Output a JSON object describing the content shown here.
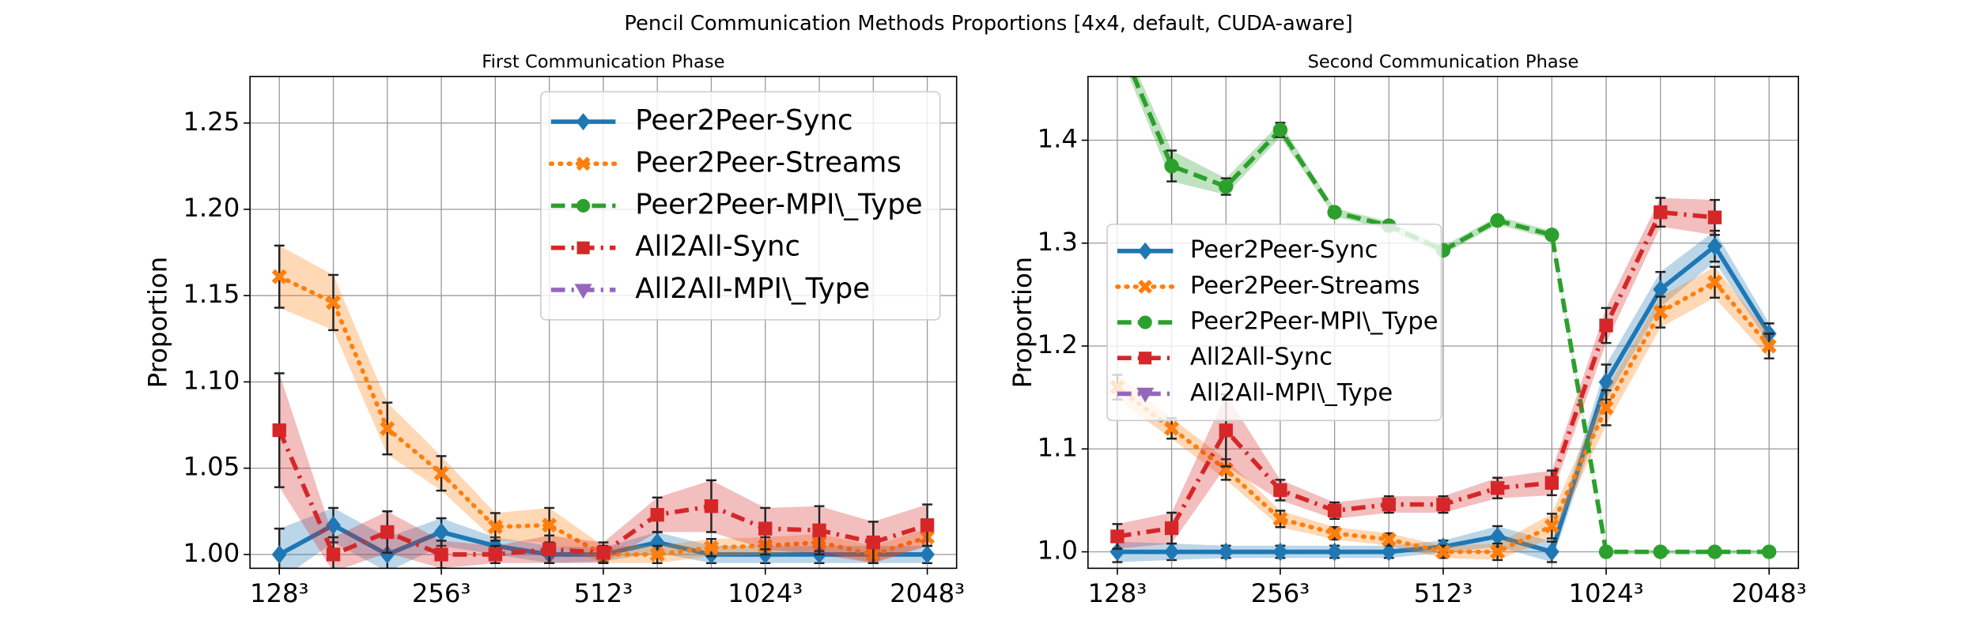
{
  "title": "Pencil Communication Methods Proportions [4x4, default, CUDA-aware]",
  "chart_data": [
    {
      "type": "line",
      "title": "First Communication Phase",
      "ylabel": "Proportion",
      "categories": [
        "128³",
        null,
        null,
        "256³",
        null,
        null,
        "512³",
        null,
        null,
        "1024³",
        null,
        null,
        "2048³"
      ],
      "ylim": [
        0.992,
        1.277
      ],
      "yticks": [
        {
          "value": 1.0,
          "label": "1.00"
        },
        {
          "value": 1.05,
          "label": "1.05"
        },
        {
          "value": 1.1,
          "label": "1.10"
        },
        {
          "value": 1.15,
          "label": "1.15"
        },
        {
          "value": 1.2,
          "label": "1.20"
        },
        {
          "value": 1.25,
          "label": "1.25"
        }
      ],
      "grid": true,
      "legend": "upper right",
      "series": [
        {
          "name": "Peer2Peer-Sync",
          "color": "#1f77b4",
          "linestyle": "solid",
          "marker": "diamond",
          "values": [
            1.0,
            1.017,
            1.0,
            1.013,
            1.005,
            1.0,
            1.0,
            1.007,
            1.0,
            1.0,
            1.0,
            1.0,
            1.0
          ],
          "errors": [
            0.015,
            0.01,
            0.01,
            0.008,
            0.005,
            0.005,
            0.004,
            0.006,
            0.005,
            0.005,
            0.005,
            0.005,
            0.005
          ]
        },
        {
          "name": "Peer2Peer-Streams",
          "color": "#ff7f0e",
          "linestyle": "dotted",
          "marker": "x",
          "values": [
            1.161,
            1.146,
            1.073,
            1.047,
            1.016,
            1.017,
            1.0,
            1.0,
            1.004,
            1.005,
            1.007,
            1.0,
            1.01
          ],
          "errors": [
            0.018,
            0.016,
            0.015,
            0.01,
            0.008,
            0.01,
            0.005,
            0.005,
            0.005,
            0.005,
            0.005,
            0.005,
            0.005
          ]
        },
        {
          "name": "Peer2Peer-MPI\\_Type",
          "color": "#2ca02c",
          "linestyle": "dashed",
          "marker": "circle",
          "values": [
            null,
            null,
            null,
            null,
            null,
            null,
            null,
            null,
            null,
            null,
            null,
            null,
            null
          ]
        },
        {
          "name": "All2All-Sync",
          "color": "#d62728",
          "linestyle": "dashdot",
          "marker": "square",
          "values": [
            1.072,
            1.0,
            1.013,
            1.0,
            1.0,
            1.003,
            1.001,
            1.023,
            1.028,
            1.015,
            1.014,
            1.007,
            1.017
          ],
          "errors": [
            0.033,
            0.01,
            0.012,
            0.008,
            0.005,
            0.008,
            0.006,
            0.01,
            0.015,
            0.012,
            0.014,
            0.012,
            0.012
          ]
        },
        {
          "name": "All2All-MPI\\_Type",
          "color": "#9467bd",
          "linestyle": "dashdot",
          "marker": "triangle",
          "values": [
            null,
            null,
            null,
            null,
            null,
            null,
            null,
            null,
            null,
            null,
            null,
            null,
            null
          ]
        }
      ]
    },
    {
      "type": "line",
      "title": "Second Communication Phase",
      "ylabel": "Proportion",
      "categories": [
        "128³",
        null,
        null,
        "256³",
        null,
        null,
        "512³",
        null,
        null,
        "1024³",
        null,
        null,
        "2048³"
      ],
      "ylim": [
        0.984,
        1.462
      ],
      "yticks": [
        {
          "value": 1.0,
          "label": "1.0"
        },
        1.1,
        1.2,
        1.3,
        1.4
      ],
      "grid": true,
      "legend": "center left",
      "series": [
        {
          "name": "Peer2Peer-Sync",
          "color": "#1f77b4",
          "linestyle": "solid",
          "marker": "diamond",
          "values": [
            1.0,
            1.0,
            1.0,
            1.0,
            1.0,
            1.0,
            1.005,
            1.015,
            1.0,
            1.165,
            1.255,
            1.297,
            1.212
          ],
          "errors": [
            0.01,
            0.008,
            0.006,
            0.006,
            0.006,
            0.006,
            0.006,
            0.01,
            0.01,
            0.017,
            0.017,
            0.015,
            0.01
          ]
        },
        {
          "name": "Peer2Peer-Streams",
          "color": "#ff7f0e",
          "linestyle": "dotted",
          "marker": "x",
          "values": [
            1.16,
            1.12,
            1.08,
            1.032,
            1.018,
            1.012,
            1.0,
            1.0,
            1.025,
            1.14,
            1.233,
            1.262,
            1.2
          ],
          "errors": [
            0.012,
            0.01,
            0.01,
            0.008,
            0.006,
            0.006,
            0.006,
            0.008,
            0.012,
            0.017,
            0.015,
            0.015,
            0.012
          ]
        },
        {
          "name": "Peer2Peer-MPI\\_Type",
          "color": "#2ca02c",
          "linestyle": "dashed",
          "marker": "circle",
          "values": [
            1.5,
            1.375,
            1.355,
            1.41,
            1.33,
            1.317,
            1.293,
            1.322,
            1.308,
            1.0,
            1.0,
            1.0,
            1.0
          ],
          "errors": [
            0.01,
            0.015,
            0.008,
            0.007,
            0.004,
            0.004,
            0.004,
            0.004,
            0.004,
            0.002,
            0.002,
            0.002,
            0.002
          ]
        },
        {
          "name": "All2All-Sync",
          "color": "#d62728",
          "linestyle": "dashdot",
          "marker": "square",
          "values": [
            1.015,
            1.023,
            1.118,
            1.06,
            1.04,
            1.046,
            1.046,
            1.062,
            1.067,
            1.22,
            1.33,
            1.325,
            null
          ],
          "errors": [
            0.012,
            0.015,
            0.035,
            0.01,
            0.008,
            0.008,
            0.008,
            0.01,
            0.012,
            0.017,
            0.014,
            0.017,
            null
          ]
        },
        {
          "name": "All2All-MPI\\_Type",
          "color": "#9467bd",
          "linestyle": "dashdot",
          "marker": "triangle",
          "values": [
            null,
            null,
            null,
            null,
            null,
            null,
            null,
            null,
            null,
            null,
            null,
            null,
            null
          ]
        }
      ]
    }
  ]
}
